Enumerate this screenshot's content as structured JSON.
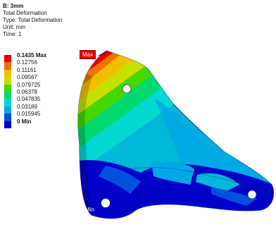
{
  "result": {
    "title": "B: 3mm",
    "lines": [
      "Total Deformation",
      "Type: Total Deformation",
      "Unit: mm",
      "Time: 1"
    ]
  },
  "legend": {
    "entries": [
      {
        "label": "0.1435 Max",
        "bold": true,
        "color": "#e60000"
      },
      {
        "label": "0.12756",
        "bold": false,
        "color": "#f07000"
      },
      {
        "label": "0.11161",
        "bold": false,
        "color": "#f0c000"
      },
      {
        "label": "0.09567",
        "bold": false,
        "color": "#c8e000"
      },
      {
        "label": "0.079725",
        "bold": false,
        "color": "#44d800"
      },
      {
        "label": "0.06378",
        "bold": false,
        "color": "#00d870"
      },
      {
        "label": "0.047835",
        "bold": false,
        "color": "#00d8d0"
      },
      {
        "label": "0.03189",
        "bold": false,
        "color": "#00a8e8"
      },
      {
        "label": "0.015945",
        "bold": false,
        "color": "#0050e0"
      },
      {
        "label": "0 Min",
        "bold": true,
        "color": "#0000c8"
      }
    ]
  },
  "probes": {
    "max_label": "Max",
    "min_label": "Min"
  }
}
